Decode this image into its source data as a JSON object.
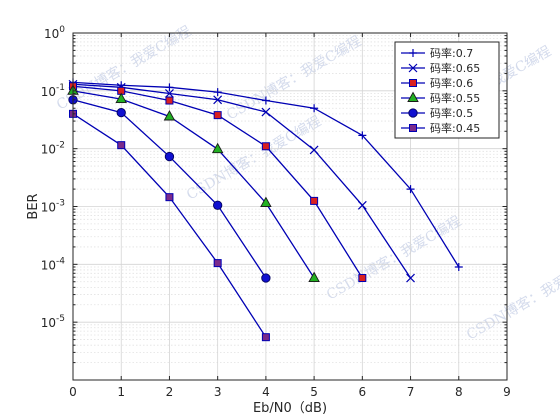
{
  "chart_data": {
    "type": "line",
    "xlabel": "Eb/N0（dB)",
    "ylabel": "BER",
    "xlim": [
      0,
      9
    ],
    "ylim": [
      1e-06,
      1
    ],
    "yscale": "log",
    "x_ticks": [
      0,
      1,
      2,
      3,
      4,
      5,
      6,
      7,
      8,
      9
    ],
    "y_tick_exponents": [
      -5,
      -4,
      -3,
      -2,
      -1,
      0
    ],
    "y_tick_base": "10",
    "grid": true,
    "minor_grid": true,
    "legend_position": "top-right",
    "line_color": "#0000b4",
    "series": [
      {
        "name": "码率:0.7",
        "marker": "plus",
        "x": [
          0,
          1,
          2,
          3,
          4,
          5,
          6,
          7,
          8
        ],
        "y": [
          0.14,
          0.125,
          0.115,
          0.095,
          0.068,
          0.05,
          0.017,
          0.002,
          9e-05
        ]
      },
      {
        "name": "码率:0.65",
        "marker": "x",
        "x": [
          0,
          1,
          2,
          3,
          4,
          5,
          6,
          7
        ],
        "y": [
          0.13,
          0.115,
          0.09,
          0.07,
          0.043,
          0.0095,
          0.00105,
          5.8e-05
        ]
      },
      {
        "name": "码率:0.6",
        "marker": "square",
        "x": [
          0,
          1,
          2,
          3,
          4,
          5,
          6
        ],
        "y": [
          0.12,
          0.1,
          0.068,
          0.038,
          0.011,
          0.00125,
          5.8e-05
        ]
      },
      {
        "name": "码率:0.55",
        "marker": "triangle",
        "x": [
          0,
          1,
          2,
          3,
          4,
          5
        ],
        "y": [
          0.1,
          0.072,
          0.036,
          0.0098,
          0.00115,
          5.8e-05
        ]
      },
      {
        "name": "码率:0.5",
        "marker": "circle",
        "x": [
          0,
          1,
          2,
          3,
          4
        ],
        "y": [
          0.07,
          0.042,
          0.0073,
          0.00105,
          5.8e-05
        ]
      },
      {
        "name": "码率:0.45",
        "marker": "square",
        "x": [
          0,
          1,
          2,
          3,
          4
        ],
        "y": [
          0.04,
          0.0115,
          0.00145,
          0.000105,
          5.5e-06
        ]
      }
    ],
    "marker_fills": {
      "plus": "none",
      "x": "none",
      "square": "#d92020",
      "triangle": "#22b022",
      "circle": "#1010d0"
    },
    "last_square_fill": "#7a2a8a"
  },
  "watermark": {
    "text": "CSDN博客：我爱C编程"
  }
}
